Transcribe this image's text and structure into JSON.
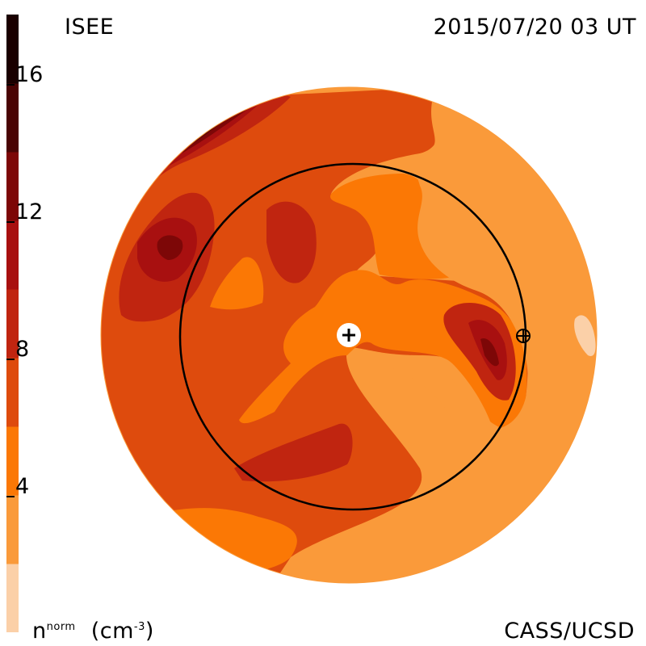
{
  "header": {
    "left_label": "ISEE",
    "right_label": "2015/07/20 03 UT"
  },
  "footer": {
    "units_main": "n",
    "units_sup": "norm",
    "units_paren": "(cm",
    "units_exp": "-3",
    "units_close": ")",
    "credit": "CASS/UCSD"
  },
  "colorbar": {
    "ticks": [
      {
        "label": "16",
        "value": 16
      },
      {
        "label": "12",
        "value": 12
      },
      {
        "label": "8",
        "value": 8
      },
      {
        "label": "4",
        "value": 4
      }
    ],
    "range": [
      0,
      18
    ],
    "levels": [
      {
        "from": 0,
        "to": 2,
        "color": "#fbd0a8"
      },
      {
        "from": 2,
        "to": 4,
        "color": "#fa9a3a"
      },
      {
        "from": 4,
        "to": 6,
        "color": "#fb7805"
      },
      {
        "from": 6,
        "to": 8,
        "color": "#de4b0d"
      },
      {
        "from": 8,
        "to": 10,
        "color": "#c02510"
      },
      {
        "from": 10,
        "to": 12,
        "color": "#a81010"
      },
      {
        "from": 12,
        "to": 14,
        "color": "#7d0707"
      },
      {
        "from": 14,
        "to": 16,
        "color": "#4a0404"
      },
      {
        "from": 16,
        "to": 18,
        "color": "#1a0000"
      }
    ]
  },
  "map": {
    "background_color": "#fa9a3a",
    "orbit_ring_color": "#000000",
    "sun_marker": "plus-circle",
    "earth_marker": "circle-plus"
  }
}
